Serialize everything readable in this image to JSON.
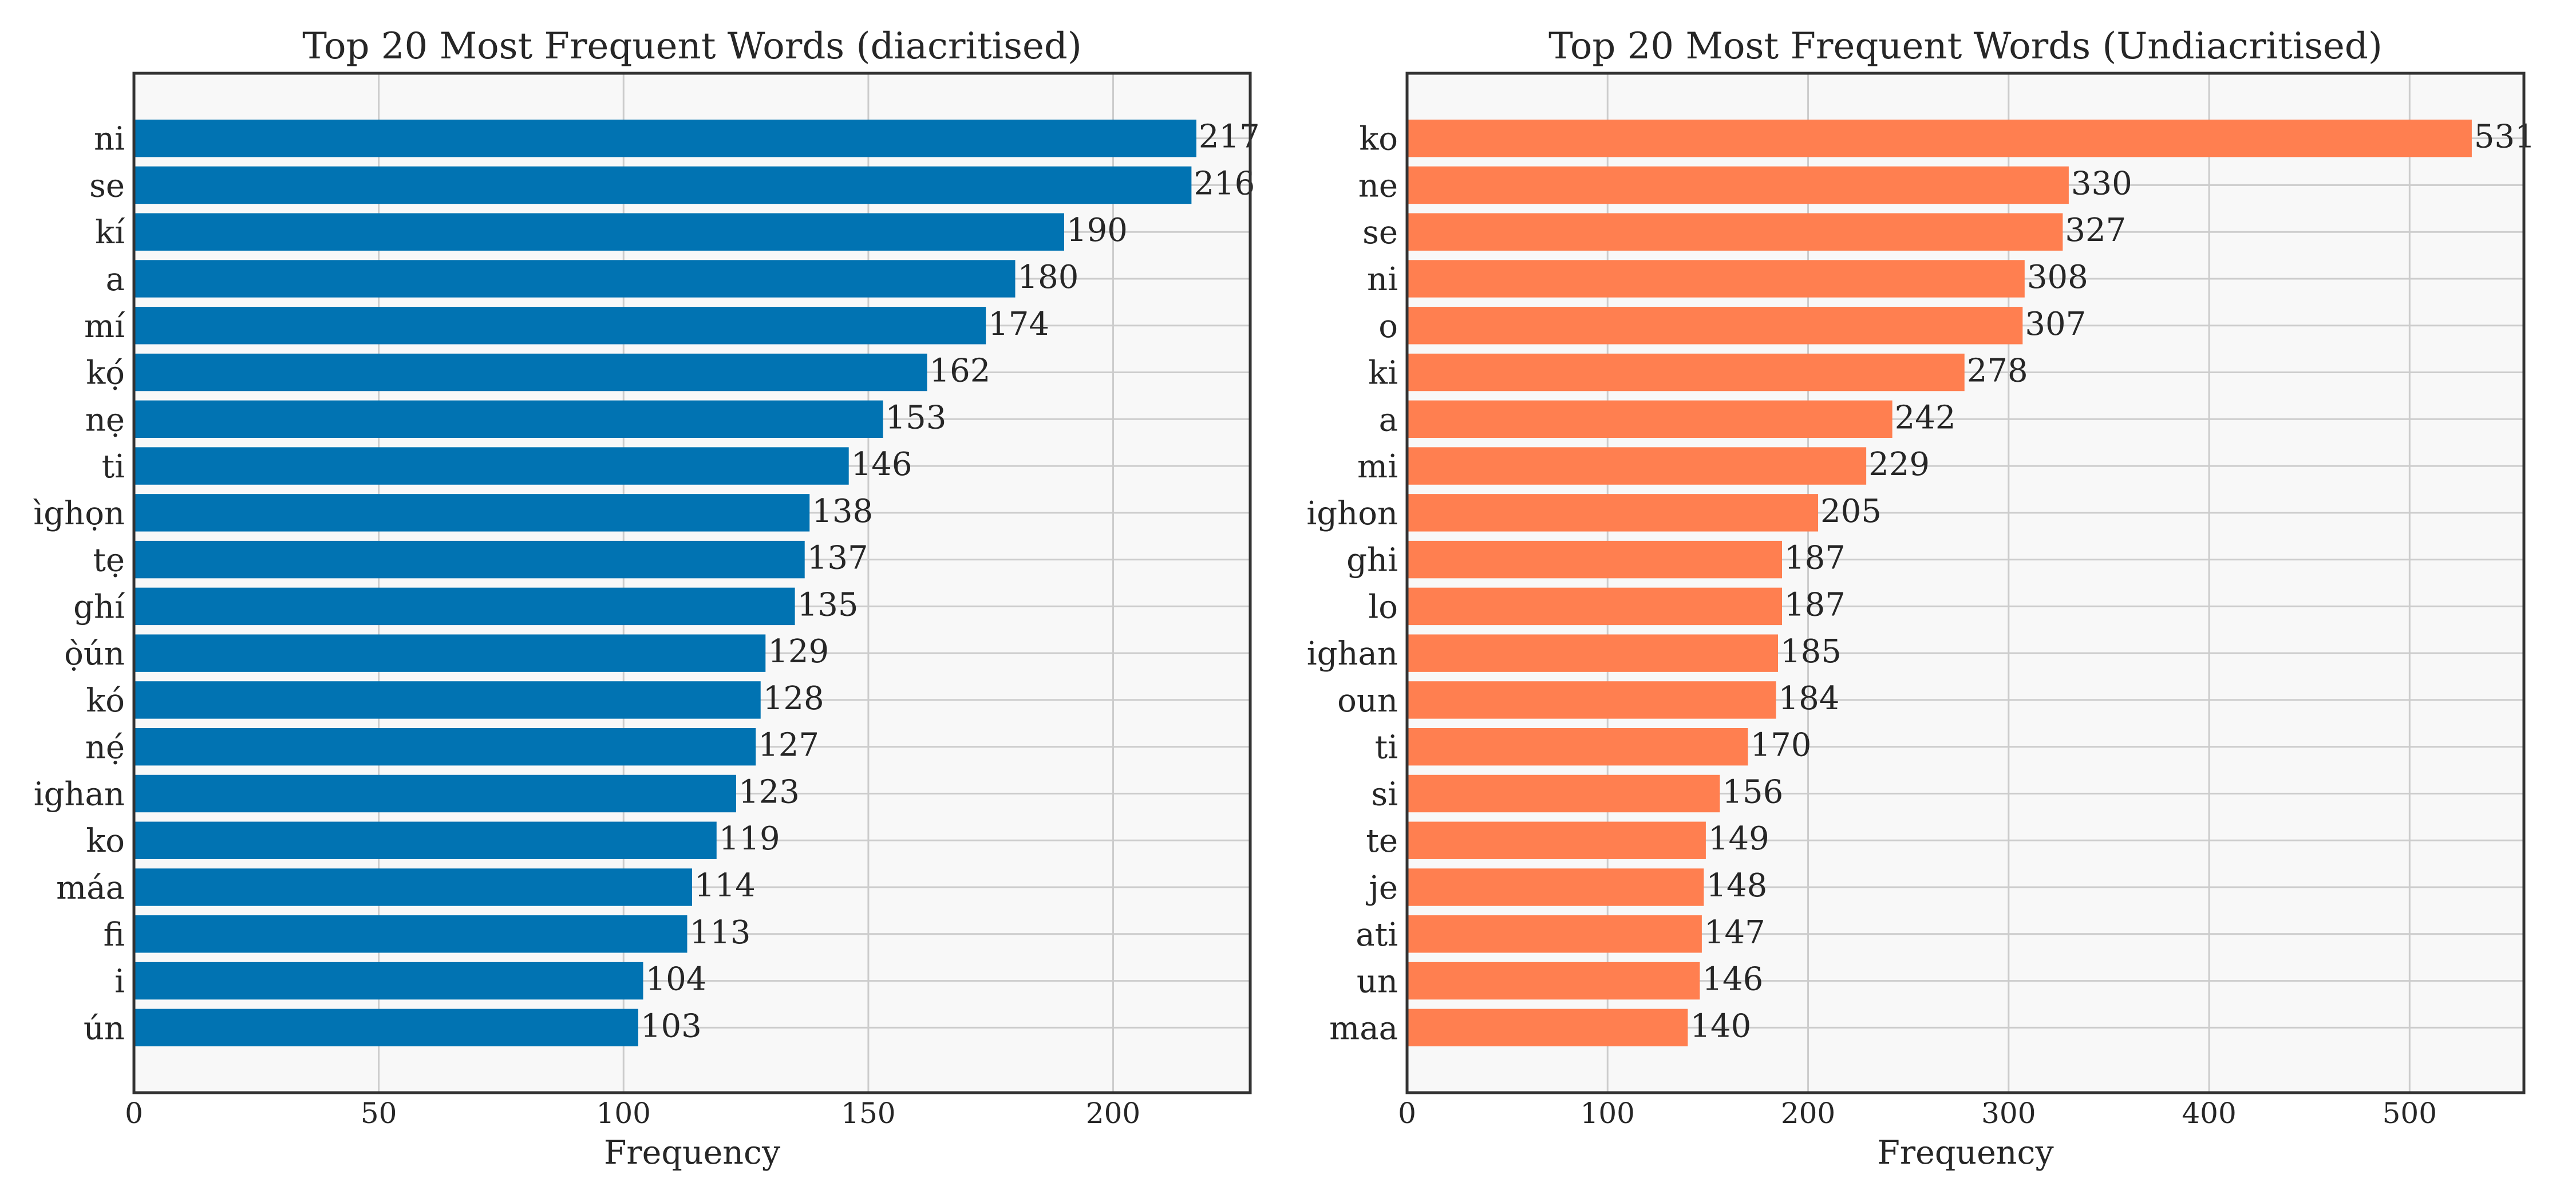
{
  "chart_data": [
    {
      "type": "bar",
      "orientation": "horizontal",
      "title": "Top 20 Most Frequent Words (diacritised)",
      "xlabel": "Frequency",
      "ylabel": "",
      "xlim": [
        0,
        228
      ],
      "xticks": [
        0,
        50,
        100,
        150,
        200
      ],
      "grid": true,
      "color": "#0173b2",
      "categories": [
        "ni",
        "se",
        "kí",
        "a",
        "mí",
        "kọ́",
        "nẹ",
        "ti",
        "ìghọn",
        "tẹ",
        "ghí",
        "ọ̀ún",
        "kó",
        "nẹ́",
        "ighan",
        "ko",
        "máa",
        "fi",
        "i",
        "ún"
      ],
      "values": [
        217,
        216,
        190,
        180,
        174,
        162,
        153,
        146,
        138,
        137,
        135,
        129,
        128,
        127,
        123,
        119,
        114,
        113,
        104,
        103
      ],
      "data_labels": true
    },
    {
      "type": "bar",
      "orientation": "horizontal",
      "title": "Top 20 Most Frequent Words (Undiacritised)",
      "xlabel": "Frequency",
      "ylabel": "",
      "xlim": [
        0,
        557
      ],
      "xticks": [
        0,
        100,
        200,
        300,
        400,
        500
      ],
      "grid": true,
      "color": "#ff7f50",
      "categories": [
        "ko",
        "ne",
        "se",
        "ni",
        "o",
        "ki",
        "a",
        "mi",
        "ighon",
        "ghi",
        "lo",
        "ighan",
        "oun",
        "ti",
        "si",
        "te",
        "je",
        "ati",
        "un",
        "maa"
      ],
      "values": [
        531,
        330,
        327,
        308,
        307,
        278,
        242,
        229,
        205,
        187,
        187,
        185,
        184,
        170,
        156,
        149,
        148,
        147,
        146,
        140
      ],
      "data_labels": true
    }
  ]
}
